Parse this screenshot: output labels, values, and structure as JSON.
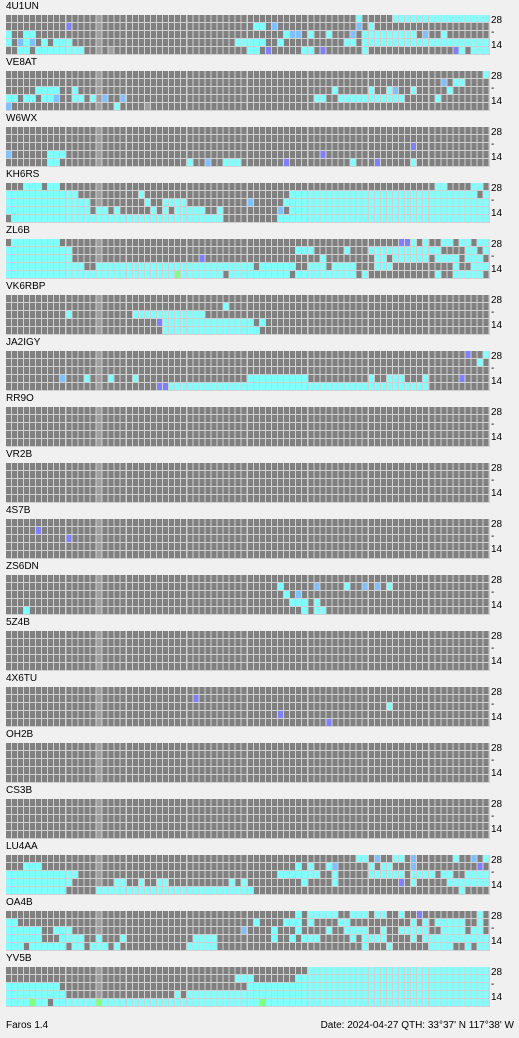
{
  "app": {
    "name": "Faros 1.4"
  },
  "status": {
    "date_label": "Date:",
    "date": "2024-04-27",
    "qth_label": "QTH:",
    "lat": "33°37' N",
    "lon": "117°38' W"
  },
  "bands": {
    "high": "28",
    "mid": "-",
    "low": "14"
  },
  "colors": {
    "background": "#f0f0f0",
    "cell_empty": "#808080",
    "cell_dim": "#a0a0a0",
    "grid_line": "#d0d0d0",
    "hour_divider": "#c0c0c0",
    "signal_weak": "#8080ff",
    "signal_low": "#80c0ff",
    "signal_medium": "#80ffff",
    "signal_strong": "#80ff80"
  },
  "beacons": [
    {
      "callsign": "4U1UN",
      "activity": [
        "",
        "",
        "",
        "",
        ""
      ]
    },
    {
      "callsign": "VE8AT",
      "activity": [
        "",
        "",
        "",
        "",
        ""
      ]
    },
    {
      "callsign": "W6WX",
      "activity": [
        "",
        "",
        "",
        "",
        ""
      ]
    },
    {
      "callsign": "KH6RS",
      "activity": [
        "",
        "",
        "",
        "",
        ""
      ]
    },
    {
      "callsign": "ZL6B",
      "activity": [
        "",
        "",
        "",
        "",
        ""
      ]
    },
    {
      "callsign": "VK6RBP",
      "activity": [
        "",
        "",
        "",
        "",
        ""
      ]
    },
    {
      "callsign": "JA2IGY",
      "activity": [
        "",
        "",
        "",
        "",
        ""
      ]
    },
    {
      "callsign": "RR9O",
      "activity": [
        "",
        "",
        "",
        "",
        ""
      ]
    },
    {
      "callsign": "VR2B",
      "activity": [
        "",
        "",
        "",
        "",
        ""
      ]
    },
    {
      "callsign": "4S7B",
      "activity": [
        "",
        "",
        "",
        "",
        ""
      ]
    },
    {
      "callsign": "ZS6DN",
      "activity": [
        "",
        "",
        "",
        "",
        ""
      ]
    },
    {
      "callsign": "5Z4B",
      "activity": [
        "",
        "",
        "",
        "",
        ""
      ]
    },
    {
      "callsign": "4X6TU",
      "activity": [
        "",
        "",
        "",
        "",
        ""
      ]
    },
    {
      "callsign": "OH2B",
      "activity": [
        "",
        "",
        "",
        "",
        ""
      ]
    },
    {
      "callsign": "CS3B",
      "activity": [
        "",
        "",
        "",
        "",
        ""
      ]
    },
    {
      "callsign": "LU4AA",
      "activity": [
        "",
        "",
        "",
        "",
        ""
      ]
    },
    {
      "callsign": "OA4B",
      "activity": [
        "",
        "",
        "",
        "",
        ""
      ]
    },
    {
      "callsign": "YV5B",
      "activity": [
        "",
        "",
        "",
        "",
        ""
      ]
    }
  ]
}
